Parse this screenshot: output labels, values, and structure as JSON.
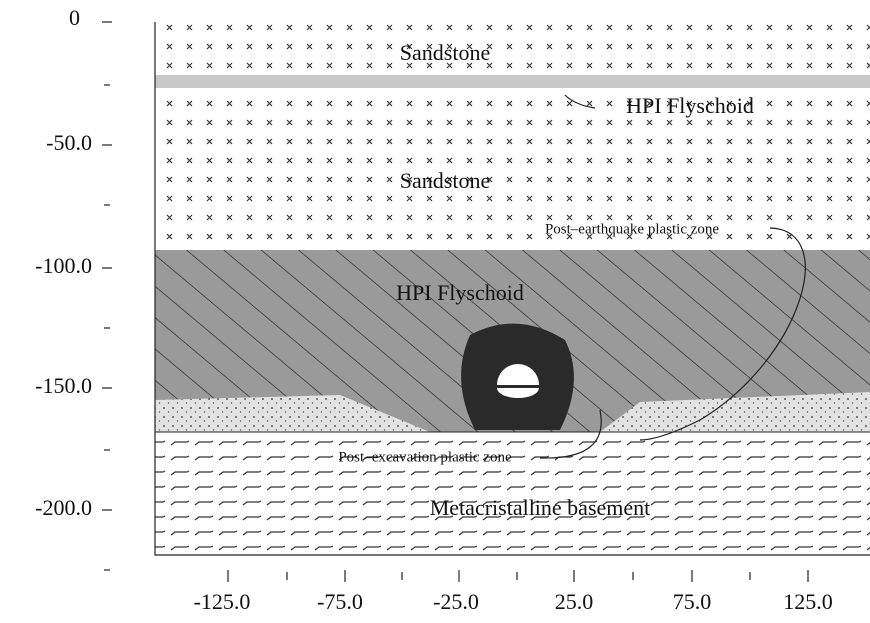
{
  "y_axis": {
    "ticks": [
      "0",
      "-50.0",
      "-100.0",
      "-150.0",
      "-200.0"
    ]
  },
  "x_axis": {
    "ticks": [
      "-125.0",
      "-75.0",
      "-25.0",
      "25.0",
      "75.0",
      "125.0"
    ]
  },
  "layers": [
    {
      "label": "Sandstone"
    },
    {
      "label": "HPI Flyschoid"
    },
    {
      "label": "Sandstone"
    },
    {
      "label": "HPI Flyschoid"
    },
    {
      "label": "Metacristalline basement"
    }
  ],
  "annotations": [
    "Post–earthquake plastic zone",
    "Post–excavation plastic zone"
  ]
}
